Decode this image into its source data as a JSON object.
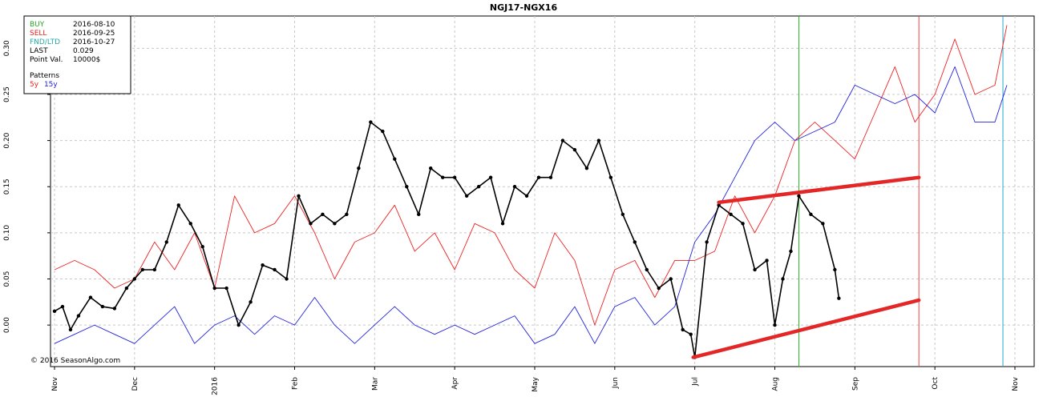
{
  "chart_data": {
    "type": "line",
    "title": "NGJ17-NGX16",
    "copyright": "© 2016 SeasonAlgo.com",
    "info": [
      {
        "label": "BUY",
        "value": "2016-08-10",
        "color": "#22aa22"
      },
      {
        "label": "SELL",
        "value": "2016-09-25",
        "color": "#dd2222"
      },
      {
        "label": "FND/LTD",
        "value": "2016-10-27",
        "color": "#22aaaa"
      },
      {
        "label": "LAST",
        "value": "0.029",
        "color": "#000000"
      },
      {
        "label": "Point Val.",
        "value": "10000$",
        "color": "#000000"
      }
    ],
    "patterns": {
      "label": "Patterns",
      "items": [
        {
          "label": "5y",
          "color": "#ee2222"
        },
        {
          "label": "15y",
          "color": "#2222dd"
        }
      ]
    },
    "x_ticks": [
      "Nov",
      "Dec",
      "2016",
      "Feb",
      "Mar",
      "Apr",
      "May",
      "Jun",
      "Jul",
      "Aug",
      "Sep",
      "Oct",
      "Nov"
    ],
    "y_ticks": [
      "0.00",
      "0.05",
      "0.10",
      "0.15",
      "0.20",
      "0.25",
      "0.30"
    ],
    "ylim": [
      -0.045,
      0.335
    ],
    "grid": true,
    "vertical_markers": [
      {
        "name": "buy-line",
        "x": 9.3,
        "color": "#22bb22"
      },
      {
        "name": "sell-line",
        "x": 10.8,
        "color": "#ee4444"
      },
      {
        "name": "fnd-line",
        "x": 11.85,
        "color": "#22aacc"
      }
    ],
    "trendlines": [
      {
        "x1": 8.3,
        "y1": 0.133,
        "x2": 10.8,
        "y2": 0.16
      },
      {
        "x1": 7.98,
        "y1": -0.035,
        "x2": 10.8,
        "y2": 0.027
      }
    ],
    "series": [
      {
        "name": "5y",
        "color": "#ee2222",
        "x": [
          0.0,
          0.25,
          0.5,
          0.75,
          1.0,
          1.25,
          1.5,
          1.75,
          2.0,
          2.25,
          2.5,
          2.75,
          3.0,
          3.25,
          3.5,
          3.75,
          4.0,
          4.25,
          4.5,
          4.75,
          5.0,
          5.25,
          5.5,
          5.75,
          6.0,
          6.25,
          6.5,
          6.75,
          7.0,
          7.25,
          7.5,
          7.75,
          8.0,
          8.25,
          8.5,
          8.75,
          9.0,
          9.25,
          9.5,
          9.75,
          10.0,
          10.25,
          10.5,
          10.75,
          11.0,
          11.25,
          11.5,
          11.75,
          11.9
        ],
        "y": [
          0.06,
          0.07,
          0.06,
          0.04,
          0.05,
          0.09,
          0.06,
          0.1,
          0.04,
          0.14,
          0.1,
          0.11,
          0.14,
          0.1,
          0.05,
          0.09,
          0.1,
          0.13,
          0.08,
          0.1,
          0.06,
          0.11,
          0.1,
          0.06,
          0.04,
          0.1,
          0.07,
          0.0,
          0.06,
          0.07,
          0.03,
          0.07,
          0.07,
          0.08,
          0.14,
          0.1,
          0.14,
          0.2,
          0.22,
          0.2,
          0.18,
          0.23,
          0.28,
          0.22,
          0.25,
          0.31,
          0.25,
          0.26,
          0.325
        ]
      },
      {
        "name": "15y",
        "color": "#2222dd",
        "x": [
          0.0,
          0.25,
          0.5,
          0.75,
          1.0,
          1.25,
          1.5,
          1.75,
          2.0,
          2.25,
          2.5,
          2.75,
          3.0,
          3.25,
          3.5,
          3.75,
          4.0,
          4.25,
          4.5,
          4.75,
          5.0,
          5.25,
          5.5,
          5.75,
          6.0,
          6.25,
          6.5,
          6.75,
          7.0,
          7.25,
          7.5,
          7.75,
          8.0,
          8.25,
          8.5,
          8.75,
          9.0,
          9.25,
          9.5,
          9.75,
          10.0,
          10.25,
          10.5,
          10.75,
          11.0,
          11.25,
          11.5,
          11.75,
          11.9
        ],
        "y": [
          -0.02,
          -0.01,
          0.0,
          -0.01,
          -0.02,
          0.0,
          0.02,
          -0.02,
          0.0,
          0.01,
          -0.01,
          0.01,
          0.0,
          0.03,
          0.0,
          -0.02,
          0.0,
          0.02,
          0.0,
          -0.01,
          0.0,
          -0.01,
          0.0,
          0.01,
          -0.02,
          -0.01,
          0.02,
          -0.02,
          0.02,
          0.03,
          0.0,
          0.02,
          0.09,
          0.12,
          0.16,
          0.2,
          0.22,
          0.2,
          0.21,
          0.22,
          0.26,
          0.25,
          0.24,
          0.25,
          0.23,
          0.28,
          0.22,
          0.22,
          0.26
        ]
      },
      {
        "name": "NGJ17-NGX16",
        "color": "#000000",
        "markers": true,
        "x": [
          0.0,
          0.1,
          0.2,
          0.3,
          0.45,
          0.6,
          0.75,
          0.9,
          1.0,
          1.1,
          1.25,
          1.4,
          1.55,
          1.7,
          1.85,
          2.0,
          2.15,
          2.3,
          2.45,
          2.6,
          2.75,
          2.9,
          3.05,
          3.2,
          3.35,
          3.5,
          3.65,
          3.8,
          3.95,
          4.1,
          4.25,
          4.4,
          4.55,
          4.7,
          4.85,
          5.0,
          5.15,
          5.3,
          5.45,
          5.6,
          5.75,
          5.9,
          6.05,
          6.2,
          6.35,
          6.5,
          6.65,
          6.8,
          6.95,
          7.1,
          7.25,
          7.4,
          7.55,
          7.7,
          7.85,
          7.95,
          8.0,
          8.15,
          8.3,
          8.45,
          8.6,
          8.75,
          8.9,
          9.0,
          9.1,
          9.2,
          9.3,
          9.45,
          9.6,
          9.75,
          9.8
        ],
        "y": [
          0.015,
          0.02,
          -0.005,
          0.01,
          0.03,
          0.02,
          0.018,
          0.04,
          0.05,
          0.06,
          0.06,
          0.09,
          0.13,
          0.11,
          0.085,
          0.04,
          0.04,
          0.0,
          0.025,
          0.065,
          0.06,
          0.05,
          0.14,
          0.11,
          0.12,
          0.11,
          0.12,
          0.17,
          0.22,
          0.21,
          0.18,
          0.15,
          0.12,
          0.17,
          0.16,
          0.16,
          0.14,
          0.15,
          0.16,
          0.11,
          0.15,
          0.14,
          0.16,
          0.16,
          0.2,
          0.19,
          0.17,
          0.2,
          0.16,
          0.12,
          0.09,
          0.06,
          0.04,
          0.05,
          -0.005,
          -0.01,
          -0.035,
          0.09,
          0.13,
          0.12,
          0.11,
          0.06,
          0.07,
          0.0,
          0.05,
          0.08,
          0.14,
          0.12,
          0.11,
          0.06,
          0.029
        ]
      }
    ]
  }
}
